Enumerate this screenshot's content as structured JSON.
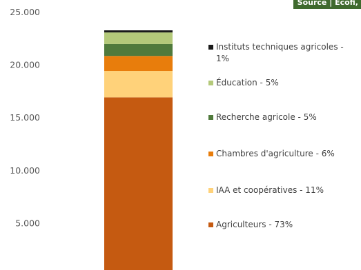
{
  "source_badge": "Source | Ecofi,",
  "chart_data": {
    "type": "bar",
    "stacked": true,
    "categories": [
      ""
    ],
    "ylim": [
      0,
      25000
    ],
    "ytick_labels": [
      "25.000",
      "20.000",
      "15.000",
      "10.000",
      "5.000"
    ],
    "ytick_values": [
      25000,
      20000,
      15000,
      10000,
      5000
    ],
    "grid": false,
    "legend_position": "right",
    "series": [
      {
        "name": "Agriculteurs - 73%",
        "values": [
          16950
        ],
        "color": "#c55a11"
      },
      {
        "name": "IAA et coopératives - 11%",
        "values": [
          2500
        ],
        "color": "#ffd27a"
      },
      {
        "name": "Chambres d'agriculture - 6%",
        "values": [
          1420
        ],
        "color": "#e87d0c"
      },
      {
        "name": "Recherche agricole - 5%",
        "values": [
          1130
        ],
        "color": "#507a3c"
      },
      {
        "name": "Éducation - 5%",
        "values": [
          1100
        ],
        "color": "#b4c97a"
      },
      {
        "name": "Instituts techniques agricoles - 1%",
        "values": [
          200
        ],
        "color": "#1a1a1a"
      }
    ],
    "legend_order": [
      "Instituts techniques agricoles - 1%",
      "Éducation - 5%",
      "Recherche agricole - 5%",
      "Chambres d'agriculture - 6%",
      "IAA et coopératives - 11%",
      "Agriculteurs - 73%"
    ]
  }
}
